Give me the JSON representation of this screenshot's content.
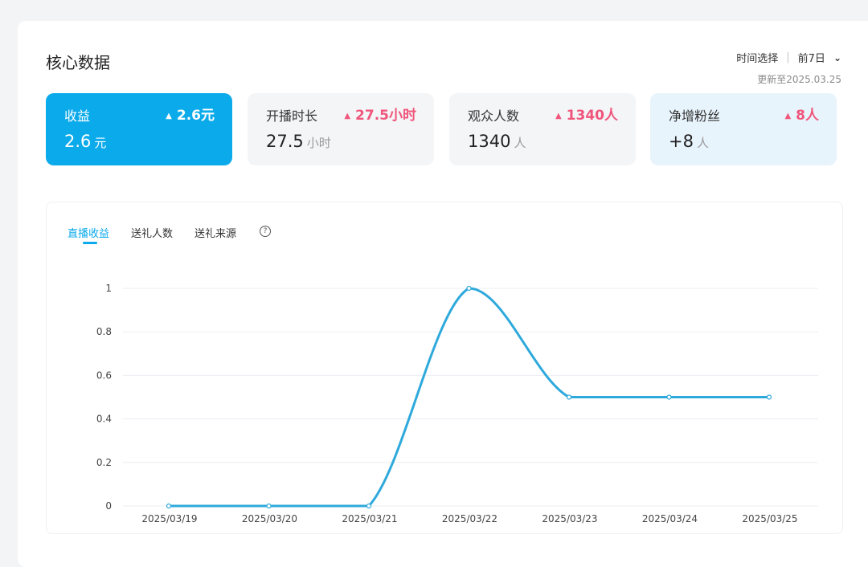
{
  "title": "核心数据",
  "time_filter": {
    "label": "时间选择",
    "value": "前7日",
    "update": "更新至2025.03.25"
  },
  "metrics": [
    {
      "label": "收益",
      "delta": "2.6元",
      "value": "2.6",
      "unit": "元"
    },
    {
      "label": "开播时长",
      "delta": "27.5小时",
      "value": "27.5",
      "unit": "小时"
    },
    {
      "label": "观众人数",
      "delta": "1340人",
      "value": "1340",
      "unit": "人"
    },
    {
      "label": "净增粉丝",
      "delta": "8人",
      "value": "+8",
      "unit": "人"
    }
  ],
  "tabs": [
    "直播收益",
    "送礼人数",
    "送礼来源"
  ],
  "colors": {
    "accent": "#0aaaeb",
    "delta": "#f0567c",
    "line": "#2ea9dc"
  },
  "chart_data": {
    "type": "line",
    "categories": [
      "2025/03/19",
      "2025/03/20",
      "2025/03/21",
      "2025/03/22",
      "2025/03/23",
      "2025/03/24",
      "2025/03/25"
    ],
    "values": [
      0,
      0,
      0,
      1,
      0.5,
      0.5,
      0.5
    ],
    "ylim": [
      0,
      1
    ],
    "yticks": [
      0,
      0.2,
      0.4,
      0.6,
      0.8,
      1
    ],
    "ytick_labels": [
      "0",
      "0.2",
      "0.4",
      "0.6",
      "0.8",
      "1"
    ],
    "smooth": true,
    "grid": true
  }
}
